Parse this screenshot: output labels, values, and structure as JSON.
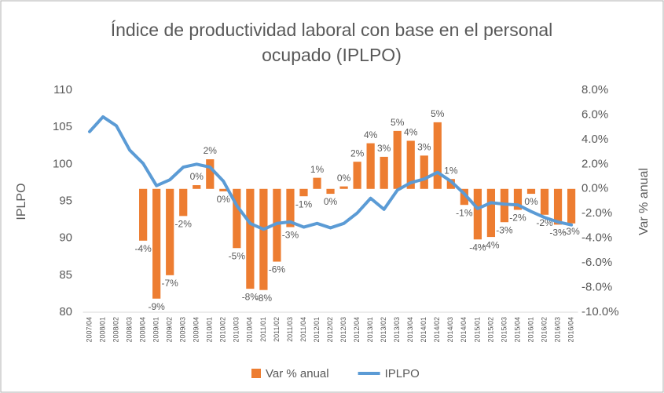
{
  "chart_data": {
    "type": "combo",
    "title": "Índice de productividad laboral con base en el personal ocupado (IPLPO)",
    "y_label": "IPLPO",
    "y2_label": "Var % anual",
    "categories": [
      "2007/04",
      "2008/01",
      "2008/02",
      "2008/03",
      "2008/04",
      "2009/01",
      "2009/02",
      "2009/03",
      "2009/04",
      "2010/01",
      "2010/02",
      "2010/03",
      "2010/04",
      "2011/01",
      "2011/02",
      "2011/03",
      "2011/04",
      "2012/01",
      "2012/02",
      "2012/03",
      "2012/04",
      "2013/01",
      "2013/02",
      "2013/03",
      "2013/04",
      "2014/01",
      "2014/02",
      "2014/03",
      "2014/04",
      "2015/01",
      "2015/02",
      "2015/03",
      "2015/04",
      "2016/01",
      "2016/02",
      "2016/03",
      "2016/04"
    ],
    "series": [
      {
        "name": "Var % anual",
        "type": "bar",
        "axis": "y2",
        "color": "#ed7d31",
        "values": [
          null,
          null,
          null,
          null,
          -4.2,
          -8.9,
          -7.0,
          -2.2,
          0.3,
          2.4,
          -0.2,
          -4.8,
          -8.1,
          -8.2,
          -5.9,
          -3.1,
          -0.6,
          0.9,
          -0.4,
          0.2,
          2.2,
          3.7,
          2.6,
          4.7,
          3.9,
          2.7,
          5.4,
          0.8,
          -1.3,
          -4.1,
          -3.9,
          -2.7,
          -1.7,
          -0.4,
          -2.1,
          -2.9,
          -2.8
        ],
        "value_labels": [
          null,
          null,
          null,
          null,
          "-4%",
          "-9%",
          "-7%",
          "-2%",
          "0%",
          "2%",
          "0%",
          "-5%",
          "-8%",
          "-8%",
          "-6%",
          "-3%",
          "-1%",
          "1%",
          "0%",
          "0%",
          "2%",
          "4%",
          "3%",
          "5%",
          "4%",
          "3%",
          "5%",
          "1%",
          "-1%",
          "-4%",
          "-4%",
          "-3%",
          "-2%",
          "0%",
          "-2%",
          "-3%",
          "-3%"
        ]
      },
      {
        "name": "IPLPO",
        "type": "line",
        "color": "#5b9bd5",
        "values": [
          104.4,
          106.4,
          105.2,
          101.9,
          100.1,
          97.1,
          97.9,
          99.6,
          100.0,
          99.6,
          97.7,
          94.4,
          92.0,
          91.2,
          92.0,
          92.2,
          91.5,
          92.0,
          91.4,
          92.0,
          93.4,
          95.4,
          93.9,
          96.5,
          97.5,
          98.0,
          98.9,
          97.7,
          96.0,
          94.0,
          94.8,
          94.6,
          94.5,
          93.6,
          92.8,
          92.2,
          91.8
        ]
      }
    ],
    "ylim": [
      80,
      110
    ],
    "yticks": [
      80,
      85,
      90,
      95,
      100,
      105,
      110
    ],
    "y2lim": [
      -10,
      8
    ],
    "y2ticks": [
      {
        "value": -10,
        "label": "-10.0%"
      },
      {
        "value": -8,
        "label": "-8.0%"
      },
      {
        "value": -6,
        "label": "-6.0%"
      },
      {
        "value": -4,
        "label": "-4.0%"
      },
      {
        "value": -2,
        "label": "-2.0%"
      },
      {
        "value": 0,
        "label": "0.0%"
      },
      {
        "value": 2,
        "label": "2.0%"
      },
      {
        "value": 4,
        "label": "4.0%"
      },
      {
        "value": 6,
        "label": "6.0%"
      },
      {
        "value": 8,
        "label": "8.0%"
      }
    ],
    "legend": "bottom"
  }
}
